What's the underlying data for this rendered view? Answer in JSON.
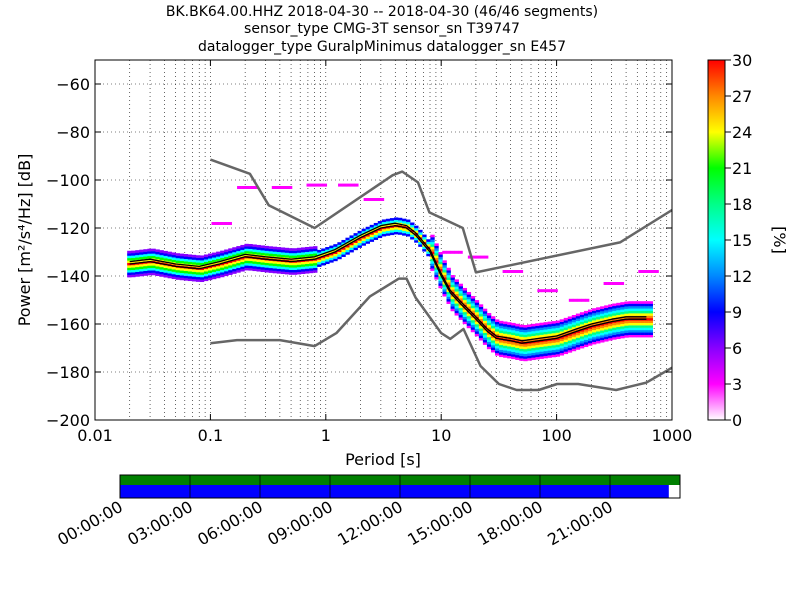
{
  "chart_data": {
    "type": "heatmap",
    "title_lines": [
      "BK.BK64.00.HHZ   2018-04-30 -- 2018-04-30  (46/46 segments)",
      "sensor_type CMG-3T sensor_sn T39747",
      "datalogger_type GuralpMinimus datalogger_sn E457"
    ],
    "xlabel": "Period [s]",
    "ylabel": "Power [m²/s⁴/Hz] [dB]",
    "x_scale": "log",
    "xlim": [
      0.01,
      1000
    ],
    "ylim": [
      -200,
      -50
    ],
    "x_ticks": [
      0.01,
      0.1,
      1,
      10,
      100,
      1000
    ],
    "x_tick_labels": [
      "0.01",
      "0.1",
      "1",
      "10",
      "100",
      "1000"
    ],
    "y_ticks": [
      -200,
      -180,
      -160,
      -140,
      -120,
      -100,
      -80,
      -60
    ],
    "y_tick_labels": [
      "−200",
      "−180",
      "−160",
      "−140",
      "−120",
      "−100",
      "−80",
      "−60"
    ],
    "grid": "dotted",
    "colorbar": {
      "label": "[%]",
      "range": [
        0,
        30
      ],
      "ticks": [
        0,
        3,
        6,
        9,
        12,
        15,
        18,
        21,
        24,
        27,
        30
      ],
      "tick_labels": [
        "0",
        "3",
        "6",
        "9",
        "12",
        "15",
        "18",
        "21",
        "24",
        "27",
        "30"
      ],
      "colormap": [
        "#ffffff",
        "#ff00ff",
        "#8800ff",
        "#0000ff",
        "#0088ff",
        "#00ffff",
        "#00ff88",
        "#00ff00",
        "#ffff00",
        "#ff8800",
        "#ff0000"
      ]
    },
    "nhnm": {
      "name": "NHNM",
      "x": [
        0.1,
        0.22,
        0.32,
        0.8,
        3.8,
        4.6,
        6.3,
        7.9,
        15.4,
        20,
        354,
        1000
      ],
      "y": [
        -91.5,
        -97.4,
        -110.5,
        -120,
        -98,
        -96.5,
        -101,
        -113.5,
        -120,
        -138.5,
        -126,
        -112.5
      ]
    },
    "nlnm": {
      "name": "NLNM",
      "x": [
        0.1,
        0.17,
        0.4,
        0.8,
        1.24,
        2.4,
        4.3,
        5,
        6,
        10,
        12,
        15.6,
        21.9,
        31.6,
        45,
        70,
        101,
        154,
        328,
        600,
        1000
      ],
      "y": [
        -168,
        -166.7,
        -166.7,
        -169.2,
        -163.7,
        -148.6,
        -141.1,
        -141.1,
        -149,
        -163.8,
        -166.2,
        -162.1,
        -177.5,
        -185,
        -187.5,
        -187.5,
        -185,
        -185,
        -187.5,
        -184.4,
        -178.2
      ]
    },
    "mode": {
      "name": "mode",
      "x": [
        0.02,
        0.03,
        0.05,
        0.08,
        0.12,
        0.2,
        0.3,
        0.5,
        0.8,
        1.2,
        2,
        3,
        4,
        5,
        6,
        8,
        10,
        12,
        15,
        20,
        25,
        30,
        40,
        50,
        70,
        100,
        150,
        200,
        300,
        400,
        600
      ],
      "y": [
        -135,
        -134,
        -136,
        -137,
        -135,
        -132,
        -133,
        -134,
        -133,
        -130,
        -124,
        -120,
        -119,
        -120,
        -123,
        -130,
        -140,
        -147,
        -152,
        -158,
        -163,
        -166,
        -167,
        -168,
        -167,
        -166,
        -163,
        -161,
        -159,
        -158,
        -158
      ]
    },
    "mean": {
      "name": "mean",
      "x": [
        0.02,
        0.03,
        0.05,
        0.08,
        0.12,
        0.2,
        0.3,
        0.5,
        0.8,
        1.2,
        2,
        3,
        4,
        5,
        6,
        8,
        10,
        12,
        15,
        20,
        25,
        30,
        40,
        50,
        70,
        100,
        150,
        200,
        300,
        400,
        600
      ],
      "y": [
        -134,
        -133,
        -135,
        -136,
        -134,
        -131,
        -132,
        -133,
        -132,
        -129,
        -123,
        -119,
        -118,
        -119,
        -122,
        -129,
        -139,
        -146,
        -151,
        -157,
        -162,
        -165,
        -166,
        -167,
        -166,
        -165,
        -162,
        -160,
        -158,
        -157,
        -157
      ]
    },
    "outliers": {
      "x": [
        0.12,
        0.2,
        0.4,
        0.8,
        1.5,
        2.5,
        12,
        20,
        40,
        80,
        150,
        300,
        600
      ],
      "y": [
        -118,
        -103,
        -103,
        -102,
        -102,
        -108,
        -130,
        -132,
        -138,
        -146,
        -150,
        -143,
        -138
      ]
    },
    "timeline": {
      "tick_labels": [
        "00:00:00",
        "03:00:00",
        "06:00:00",
        "09:00:00",
        "12:00:00",
        "15:00:00",
        "18:00:00",
        "21:00:00"
      ],
      "coverage_fraction": 0.98,
      "data_color": "#0000ff",
      "gap_color": "#008000"
    }
  }
}
